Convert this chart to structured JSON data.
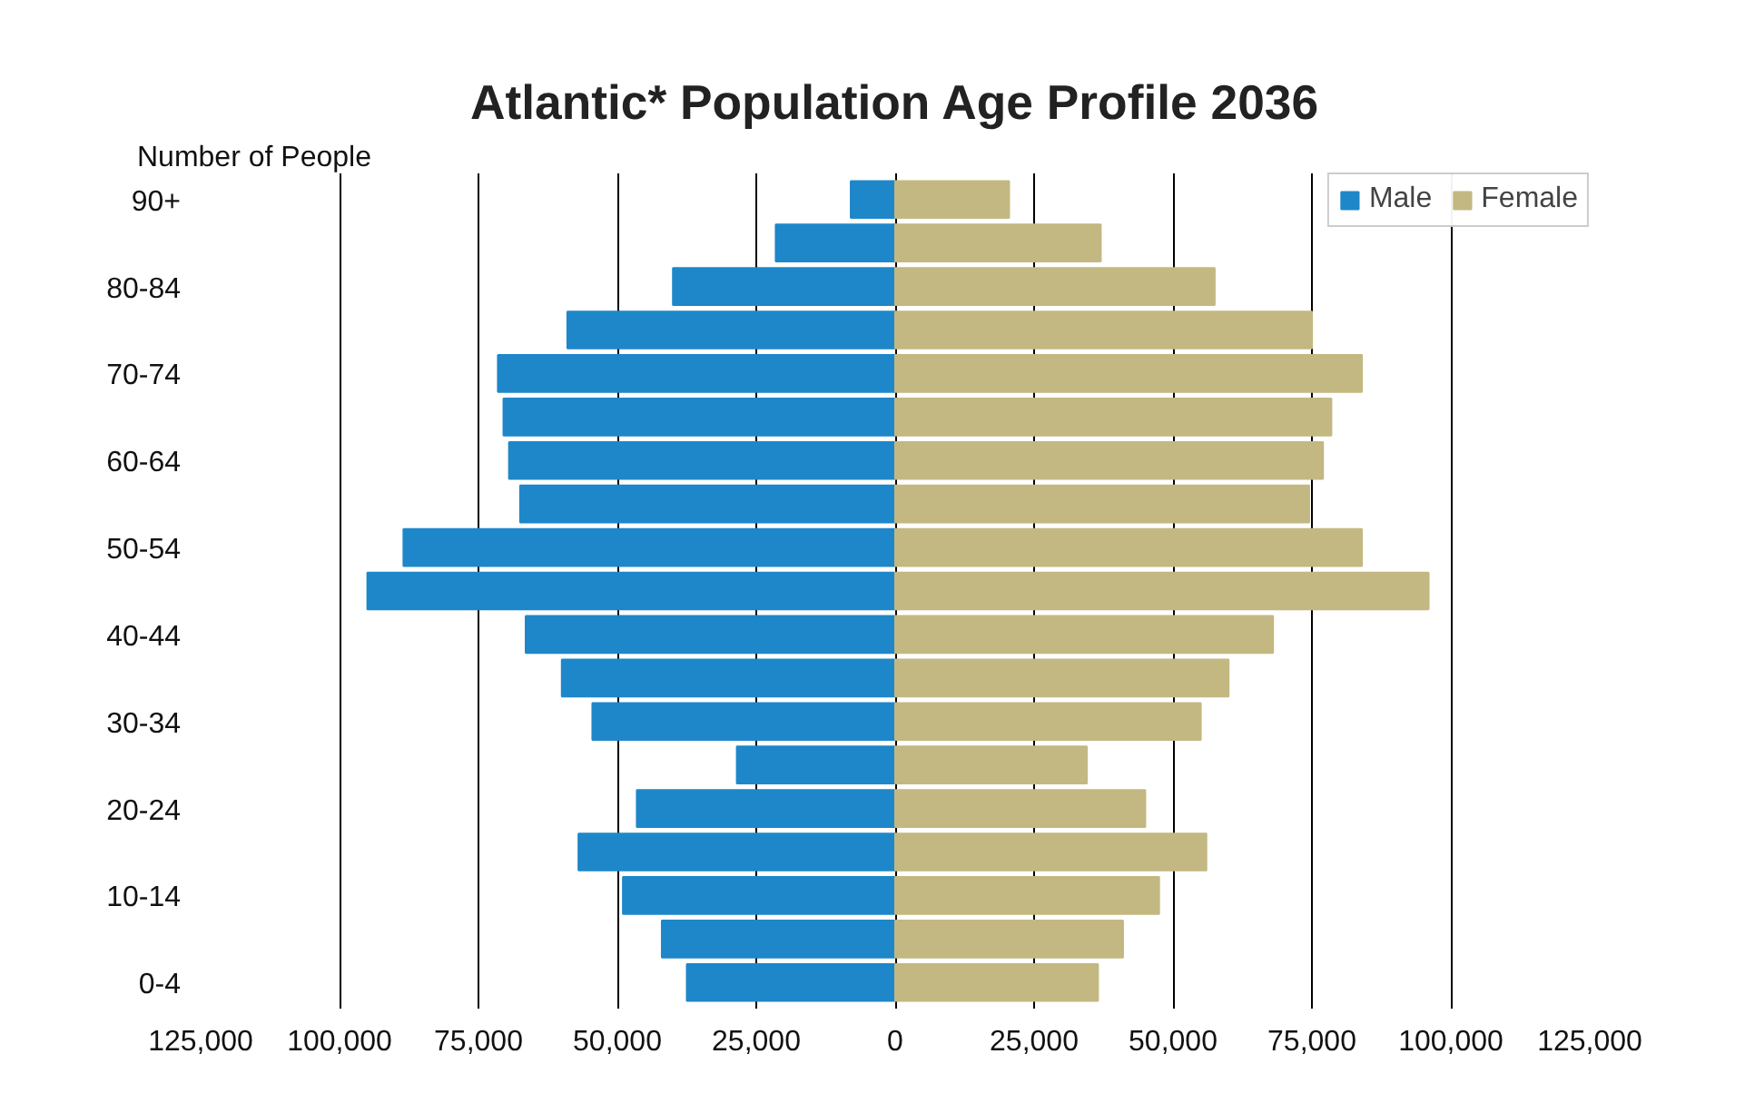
{
  "chart_data": {
    "type": "bar",
    "orientation": "horizontal",
    "title": "Atlantic* Population Age Profile 2036",
    "xlabel": "Number of People",
    "categories": [
      "90+",
      null,
      "80-84",
      null,
      "70-74",
      null,
      "60-64",
      null,
      "50-54",
      null,
      "40-44",
      null,
      "30-34",
      null,
      "20-24",
      null,
      "10-14",
      null,
      "0-4"
    ],
    "series": [
      {
        "name": "Male",
        "color": "#1e87c9",
        "values": [
          -8000,
          -21500,
          -40000,
          -59000,
          -71500,
          -70500,
          -69500,
          -67500,
          -88500,
          -95000,
          -66500,
          -60000,
          -54500,
          -28500,
          -46500,
          -57000,
          -49000,
          -42000,
          -37500
        ]
      },
      {
        "name": "Female",
        "color": "#c3b881",
        "values": [
          20500,
          37000,
          57500,
          75000,
          84000,
          78500,
          77000,
          74500,
          84000,
          96000,
          68000,
          60000,
          55000,
          34500,
          45000,
          56000,
          47500,
          41000,
          36500
        ]
      }
    ],
    "xlim": [
      -125000,
      125000
    ],
    "xticks": [
      {
        "value": -125000,
        "label": "125,000"
      },
      {
        "value": -100000,
        "label": "100,000"
      },
      {
        "value": -75000,
        "label": "75,000"
      },
      {
        "value": -50000,
        "label": "50,000"
      },
      {
        "value": -25000,
        "label": "25,000"
      },
      {
        "value": 0,
        "label": "0"
      },
      {
        "value": 25000,
        "label": "25,000"
      },
      {
        "value": 50000,
        "label": "50,000"
      },
      {
        "value": 75000,
        "label": "75,000"
      },
      {
        "value": 100000,
        "label": "100,000"
      },
      {
        "value": 125000,
        "label": "125,000"
      }
    ],
    "grid": "x",
    "legend": "top right",
    "stacked": true
  }
}
